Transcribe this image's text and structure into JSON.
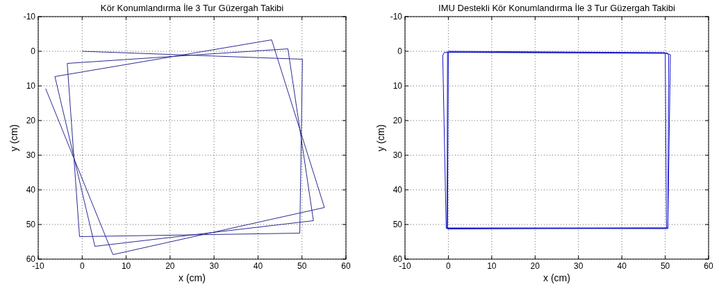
{
  "chart_data": [
    {
      "type": "line",
      "title": "Kör Konumlandırma İle 3 Tur Güzergah Takibi",
      "xlabel": "x (cm)",
      "ylabel": "y (cm)",
      "xlim": [
        -10,
        60
      ],
      "ylim": [
        60,
        -10
      ],
      "xticks": [
        -10,
        0,
        10,
        20,
        30,
        40,
        50,
        60
      ],
      "yticks": [
        -10,
        0,
        10,
        20,
        30,
        40,
        50,
        60
      ],
      "grid": true,
      "marker": "none",
      "line_style": "solid",
      "series": [
        {
          "color": "#2a2a90",
          "x": [
            0,
            50.1,
            49.5,
            -0.6,
            -3.4,
            46.8,
            52.6,
            2.9,
            -6.2,
            43.1,
            55.1,
            7.0,
            -8.3
          ],
          "values": [
            0,
            2.3,
            52.5,
            53.5,
            3.5,
            -0.7,
            48.9,
            56.3,
            7.3,
            -3.3,
            45.1,
            58.7,
            10.8
          ]
        }
      ]
    },
    {
      "type": "line",
      "title": "IMU Destekli Kör Konumlandırma İle 3 Tur Güzergah Takibi",
      "xlabel": "x (cm)",
      "ylabel": "y (cm)",
      "xlim": [
        -10,
        60
      ],
      "ylim": [
        60,
        -10
      ],
      "xticks": [
        -10,
        0,
        10,
        20,
        30,
        40,
        50,
        60
      ],
      "yticks": [
        -10,
        0,
        10,
        20,
        30,
        40,
        50,
        60
      ],
      "grid": true,
      "marker": "none",
      "line_style": "solid",
      "series": [
        {
          "color": "#1414c8",
          "x": [
            0,
            50,
            50.3,
            -0.3,
            -0.2,
            50.5,
            50.8,
            50.6,
            -0.5,
            -1.3,
            -0.9,
            50.2,
            51.2,
            50.6,
            -0.2,
            0
          ],
          "values": [
            0,
            0.4,
            51,
            51,
            0.2,
            0.5,
            1.2,
            51.2,
            51.1,
            1.2,
            0.3,
            0.6,
            1,
            51,
            51.3,
            0.2
          ]
        }
      ]
    }
  ]
}
